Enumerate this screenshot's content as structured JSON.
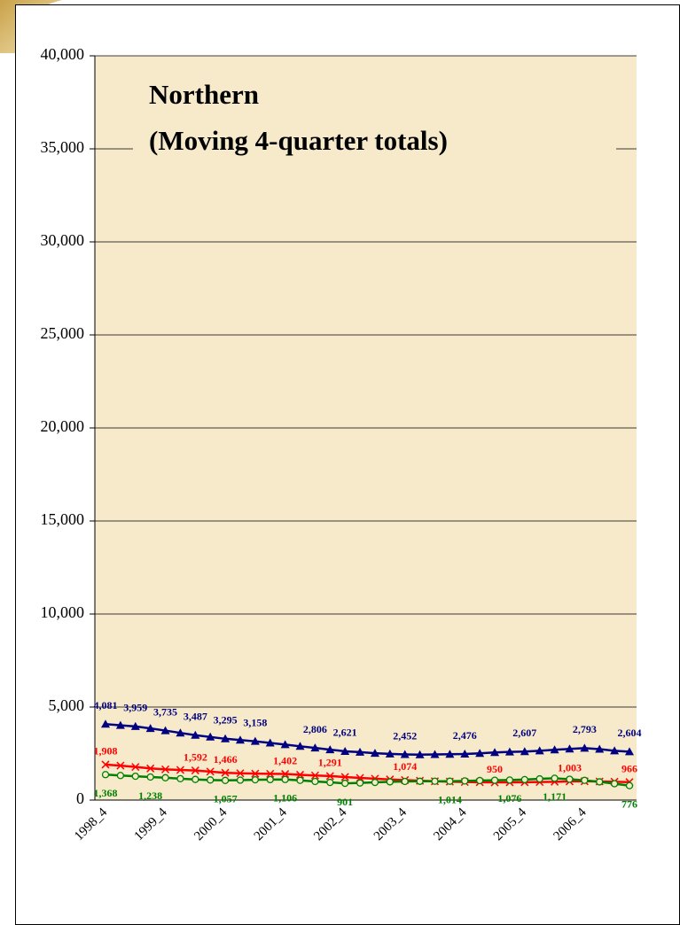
{
  "chart_data": {
    "type": "line",
    "title": "Northern",
    "subtitle": "(Moving 4-quarter totals)",
    "categories": [
      "1998_4",
      null,
      null,
      null,
      "1999_4",
      null,
      null,
      null,
      "2000_4",
      null,
      null,
      null,
      "2001_4",
      null,
      null,
      null,
      "2002_4",
      null,
      null,
      null,
      "2003_4",
      null,
      null,
      null,
      "2004_4",
      null,
      null,
      null,
      "2005_4",
      null,
      null,
      null,
      "2006_4",
      null,
      null,
      null
    ],
    "ylim": [
      0,
      40000
    ],
    "yticks": [
      {
        "value": 0,
        "label": "0"
      },
      {
        "value": 5000,
        "label": "5,000"
      },
      {
        "value": 10000,
        "label": "10,000"
      },
      {
        "value": 15000,
        "label": "15,000"
      },
      {
        "value": 20000,
        "label": "20,000"
      },
      {
        "value": 25000,
        "label": "25,000"
      },
      {
        "value": 30000,
        "label": "30,000"
      },
      {
        "value": 35000,
        "label": "35,000"
      },
      {
        "value": 40000,
        "label": "40,000"
      }
    ],
    "grid": true,
    "series": [
      {
        "color": "#000080",
        "marker": "triangle",
        "values": [
          4081,
          4020,
          3959,
          3850,
          3735,
          3610,
          3487,
          3390,
          3295,
          3225,
          3158,
          3070,
          2980,
          2890,
          2806,
          2710,
          2621,
          2580,
          2520,
          2480,
          2452,
          2440,
          2455,
          2466,
          2476,
          2510,
          2560,
          2590,
          2607,
          2650,
          2700,
          2750,
          2793,
          2740,
          2650,
          2604
        ],
        "value_labels": [
          "4,081",
          null,
          "3,959",
          null,
          "3,735",
          null,
          "3,487",
          null,
          "3,295",
          null,
          "3,158",
          null,
          null,
          null,
          "2,806",
          null,
          "2,621",
          null,
          null,
          null,
          "2,452",
          null,
          null,
          null,
          "2,476",
          null,
          null,
          null,
          "2,607",
          null,
          null,
          null,
          "2,793",
          null,
          null,
          "2,604"
        ]
      },
      {
        "color": "#ff0000",
        "marker": "x",
        "values": [
          1908,
          1850,
          1780,
          1700,
          1650,
          1620,
          1592,
          1530,
          1466,
          1440,
          1420,
          1410,
          1402,
          1360,
          1320,
          1291,
          1240,
          1190,
          1150,
          1110,
          1074,
          1040,
          1010,
          990,
          970,
          960,
          950,
          955,
          960,
          970,
          985,
          1003,
          1010,
          1000,
          985,
          966
        ],
        "value_labels": [
          "1,908",
          null,
          null,
          null,
          null,
          null,
          "1,592",
          null,
          "1,466",
          null,
          null,
          null,
          "1,402",
          null,
          null,
          "1,291",
          null,
          null,
          null,
          null,
          "1,074",
          null,
          null,
          null,
          null,
          null,
          "950",
          null,
          null,
          null,
          null,
          "1,003",
          null,
          null,
          null,
          "966"
        ]
      },
      {
        "color": "#008000",
        "marker": "circle",
        "values": [
          1368,
          1320,
          1280,
          1238,
          1200,
          1150,
          1110,
          1080,
          1057,
          1070,
          1090,
          1100,
          1106,
          1060,
          1000,
          950,
          901,
          920,
          950,
          980,
          1000,
          1010,
          1012,
          1014,
          1030,
          1050,
          1065,
          1076,
          1100,
          1140,
          1171,
          1120,
          1060,
          980,
          880,
          776
        ],
        "value_labels": [
          "1,368",
          null,
          null,
          "1,238",
          null,
          null,
          null,
          null,
          "1,057",
          null,
          null,
          null,
          "1,106",
          null,
          null,
          null,
          "901",
          null,
          null,
          null,
          null,
          null,
          null,
          "1,014",
          null,
          null,
          null,
          "1,076",
          null,
          null,
          "1,171",
          null,
          null,
          null,
          null,
          "776"
        ]
      }
    ]
  }
}
